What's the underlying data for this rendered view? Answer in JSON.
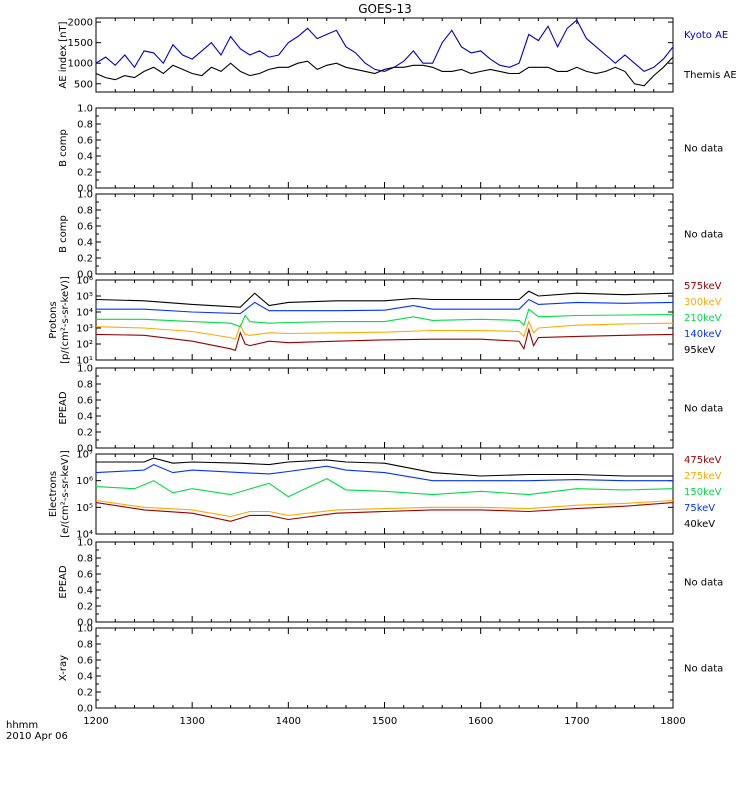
{
  "title": "GOES-13",
  "x_axis": {
    "ticks": [
      "1200",
      "1300",
      "1400",
      "1500",
      "1600",
      "1700",
      "1800"
    ],
    "label_line1": "hhmm",
    "label_line2": "2010 Apr 06"
  },
  "chart_data": [
    {
      "type": "line",
      "panel": "ae",
      "ylabel": "AE index [nT]",
      "ylim": [
        300,
        2100
      ],
      "ytick_labels": [
        "500",
        "1000",
        "1500",
        "2000"
      ],
      "x_range": [
        1200,
        1800
      ],
      "series": [
        {
          "name": "Kyoto AE",
          "color": "#0000cc",
          "x": [
            1200,
            1210,
            1220,
            1230,
            1240,
            1250,
            1260,
            1270,
            1280,
            1290,
            1300,
            1310,
            1320,
            1330,
            1340,
            1350,
            1360,
            1370,
            1380,
            1390,
            1400,
            1410,
            1420,
            1430,
            1440,
            1450,
            1460,
            1470,
            1480,
            1490,
            1500,
            1510,
            1520,
            1530,
            1540,
            1550,
            1560,
            1570,
            1580,
            1590,
            1600,
            1610,
            1620,
            1630,
            1640,
            1650,
            1660,
            1670,
            1680,
            1690,
            1700,
            1710,
            1720,
            1730,
            1740,
            1750,
            1760,
            1770,
            1780,
            1790,
            1800
          ],
          "values": [
            1000,
            1150,
            950,
            1200,
            900,
            1300,
            1250,
            1000,
            1450,
            1200,
            1100,
            1300,
            1500,
            1200,
            1650,
            1350,
            1200,
            1300,
            1150,
            1200,
            1500,
            1650,
            1850,
            1600,
            1700,
            1800,
            1400,
            1250,
            1000,
            850,
            800,
            900,
            1050,
            1300,
            1000,
            1000,
            1500,
            1800,
            1400,
            1250,
            1300,
            1100,
            950,
            900,
            1000,
            1700,
            1550,
            1900,
            1400,
            1850,
            2050,
            1600,
            1400,
            1200,
            1000,
            1200,
            1000,
            800,
            900,
            1100,
            1400
          ]
        },
        {
          "name": "Themis AE",
          "color": "#000000",
          "x": [
            1200,
            1210,
            1220,
            1230,
            1240,
            1250,
            1260,
            1270,
            1280,
            1290,
            1300,
            1310,
            1320,
            1330,
            1340,
            1350,
            1360,
            1370,
            1380,
            1390,
            1400,
            1410,
            1420,
            1430,
            1440,
            1450,
            1460,
            1470,
            1480,
            1490,
            1500,
            1510,
            1520,
            1530,
            1540,
            1550,
            1560,
            1570,
            1580,
            1590,
            1600,
            1610,
            1620,
            1630,
            1640,
            1650,
            1660,
            1670,
            1680,
            1690,
            1700,
            1710,
            1720,
            1730,
            1740,
            1750,
            1760,
            1770,
            1780,
            1790,
            1800
          ],
          "values": [
            750,
            650,
            600,
            700,
            650,
            800,
            900,
            750,
            950,
            850,
            750,
            700,
            900,
            800,
            1000,
            800,
            700,
            750,
            850,
            900,
            900,
            1000,
            1050,
            850,
            950,
            1000,
            900,
            850,
            800,
            750,
            850,
            900,
            900,
            950,
            950,
            900,
            800,
            800,
            850,
            750,
            800,
            850,
            800,
            750,
            750,
            900,
            900,
            900,
            800,
            800,
            900,
            800,
            750,
            800,
            900,
            800,
            500,
            450,
            700,
            900,
            1150
          ]
        }
      ]
    },
    {
      "type": "line",
      "panel": "b1",
      "ylabel": "B comp",
      "ylim": [
        0,
        1
      ],
      "ytick_labels": [
        "0.0",
        "0.2",
        "0.4",
        "0.6",
        "0.8",
        "1.0"
      ],
      "note": "No data",
      "series": []
    },
    {
      "type": "line",
      "panel": "b2",
      "ylabel": "B comp",
      "ylim": [
        0,
        1
      ],
      "ytick_labels": [
        "0.0",
        "0.2",
        "0.4",
        "0.6",
        "0.8",
        "1.0"
      ],
      "note": "No data",
      "series": []
    },
    {
      "type": "line",
      "panel": "protons",
      "ylabel_line1": "Protons",
      "ylabel_line2": "[p/(cm²-s-sr-keV)]",
      "log_scale": true,
      "ylim": [
        10,
        1000000
      ],
      "ytick_labels": [
        "10¹",
        "10²",
        "10³",
        "10⁴",
        "10⁵",
        "10⁶"
      ],
      "x_range": [
        1200,
        1800
      ],
      "series": [
        {
          "name": "575keV",
          "color": "#990000",
          "x": [
            1200,
            1250,
            1300,
            1340,
            1345,
            1350,
            1355,
            1360,
            1380,
            1400,
            1450,
            1500,
            1550,
            1600,
            1640,
            1645,
            1650,
            1655,
            1660,
            1700,
            1750,
            1800
          ],
          "values": [
            400,
            350,
            150,
            50,
            40,
            500,
            100,
            80,
            150,
            120,
            150,
            180,
            200,
            200,
            150,
            50,
            800,
            80,
            250,
            300,
            350,
            400
          ]
        },
        {
          "name": "300keV",
          "color": "#ffaa00",
          "x": [
            1200,
            1250,
            1300,
            1340,
            1345,
            1350,
            1355,
            1360,
            1380,
            1400,
            1450,
            1500,
            1550,
            1600,
            1640,
            1645,
            1650,
            1655,
            1660,
            1700,
            1750,
            1800
          ],
          "values": [
            1200,
            1000,
            600,
            250,
            200,
            1500,
            400,
            350,
            500,
            450,
            500,
            550,
            700,
            700,
            600,
            300,
            2500,
            500,
            1000,
            1500,
            1800,
            2000
          ]
        },
        {
          "name": "210keV",
          "color": "#00dd44",
          "x": [
            1200,
            1250,
            1300,
            1340,
            1350,
            1355,
            1360,
            1380,
            1400,
            1450,
            1500,
            1530,
            1550,
            1600,
            1640,
            1645,
            1650,
            1660,
            1700,
            1750,
            1800
          ],
          "values": [
            3500,
            3500,
            2500,
            2000,
            1200,
            6000,
            2500,
            2000,
            2200,
            2500,
            2500,
            5000,
            3000,
            3500,
            3000,
            1500,
            15000,
            5000,
            6000,
            6500,
            7000
          ]
        },
        {
          "name": "140keV",
          "color": "#0033ff",
          "x": [
            1200,
            1250,
            1300,
            1350,
            1365,
            1380,
            1400,
            1450,
            1500,
            1530,
            1550,
            1600,
            1640,
            1650,
            1660,
            1700,
            1750,
            1800
          ],
          "values": [
            15000,
            15000,
            10000,
            8000,
            40000,
            12000,
            12000,
            12000,
            13000,
            25000,
            15000,
            15000,
            15000,
            60000,
            30000,
            40000,
            35000,
            40000
          ]
        },
        {
          "name": "95keV",
          "color": "#000000",
          "x": [
            1200,
            1250,
            1300,
            1350,
            1365,
            1380,
            1400,
            1450,
            1500,
            1530,
            1550,
            1600,
            1640,
            1650,
            1660,
            1700,
            1750,
            1800
          ],
          "values": [
            60000,
            50000,
            30000,
            20000,
            150000,
            25000,
            40000,
            50000,
            50000,
            70000,
            60000,
            60000,
            60000,
            200000,
            100000,
            150000,
            120000,
            150000
          ]
        }
      ]
    },
    {
      "type": "line",
      "panel": "epead1",
      "ylabel": "EPEAD",
      "ylim": [
        0,
        1
      ],
      "ytick_labels": [
        "0.0",
        "0.2",
        "0.4",
        "0.6",
        "0.8",
        "1.0"
      ],
      "note": "No data",
      "series": []
    },
    {
      "type": "line",
      "panel": "electrons",
      "ylabel_line1": "Electrons",
      "ylabel_line2": "[e/(cm²-s-sr-keV)]",
      "log_scale": true,
      "ylim": [
        10000,
        10000000
      ],
      "ytick_labels": [
        "10⁴",
        "10⁵",
        "10⁶",
        "10⁷"
      ],
      "x_range": [
        1200,
        1800
      ],
      "series": [
        {
          "name": "475keV",
          "color": "#990000",
          "x": [
            1200,
            1250,
            1300,
            1340,
            1360,
            1380,
            1400,
            1450,
            1500,
            1550,
            1600,
            1650,
            1700,
            1750,
            1800
          ],
          "values": [
            150000,
            80000,
            60000,
            30000,
            50000,
            50000,
            35000,
            60000,
            70000,
            80000,
            80000,
            70000,
            90000,
            110000,
            150000
          ]
        },
        {
          "name": "275keV",
          "color": "#ffaa00",
          "x": [
            1200,
            1250,
            1300,
            1340,
            1360,
            1380,
            1400,
            1450,
            1500,
            1550,
            1600,
            1650,
            1700,
            1750,
            1800
          ],
          "values": [
            180000,
            100000,
            80000,
            45000,
            70000,
            70000,
            50000,
            80000,
            90000,
            100000,
            100000,
            90000,
            120000,
            140000,
            180000
          ]
        },
        {
          "name": "150keV",
          "color": "#00dd44",
          "x": [
            1200,
            1240,
            1260,
            1280,
            1300,
            1340,
            1380,
            1400,
            1440,
            1460,
            1500,
            1550,
            1600,
            1650,
            1700,
            1750,
            1800
          ],
          "values": [
            600000,
            500000,
            1000000,
            350000,
            500000,
            300000,
            800000,
            250000,
            1200000,
            450000,
            400000,
            300000,
            400000,
            300000,
            500000,
            450000,
            500000
          ]
        },
        {
          "name": "75keV",
          "color": "#0033ff",
          "x": [
            1200,
            1250,
            1260,
            1280,
            1300,
            1350,
            1380,
            1400,
            1440,
            1460,
            1500,
            1550,
            1600,
            1650,
            1700,
            1750,
            1800
          ],
          "values": [
            2000000,
            2500000,
            4000000,
            2000000,
            2500000,
            2000000,
            1800000,
            2200000,
            3500000,
            2500000,
            2000000,
            1000000,
            1000000,
            1000000,
            1100000,
            1000000,
            1000000
          ]
        },
        {
          "name": "40keV",
          "color": "#000000",
          "x": [
            1200,
            1250,
            1260,
            1280,
            1300,
            1350,
            1380,
            1400,
            1440,
            1460,
            1500,
            1550,
            1600,
            1650,
            1700,
            1750,
            1800
          ],
          "values": [
            5000000,
            5000000,
            7000000,
            4500000,
            5000000,
            4500000,
            4000000,
            5000000,
            6000000,
            5000000,
            4500000,
            2000000,
            1500000,
            1700000,
            1700000,
            1500000,
            1500000
          ]
        }
      ]
    },
    {
      "type": "line",
      "panel": "epead2",
      "ylabel": "EPEAD",
      "ylim": [
        0,
        1
      ],
      "ytick_labels": [
        "0.0",
        "0.2",
        "0.4",
        "0.6",
        "0.8",
        "1.0"
      ],
      "note": "No data",
      "series": []
    },
    {
      "type": "line",
      "panel": "xray",
      "ylabel": "X-ray",
      "ylim": [
        0,
        1
      ],
      "ytick_labels": [
        "0.0",
        "0.2",
        "0.4",
        "0.6",
        "0.8",
        "1.0"
      ],
      "note": "No data",
      "series": []
    }
  ]
}
